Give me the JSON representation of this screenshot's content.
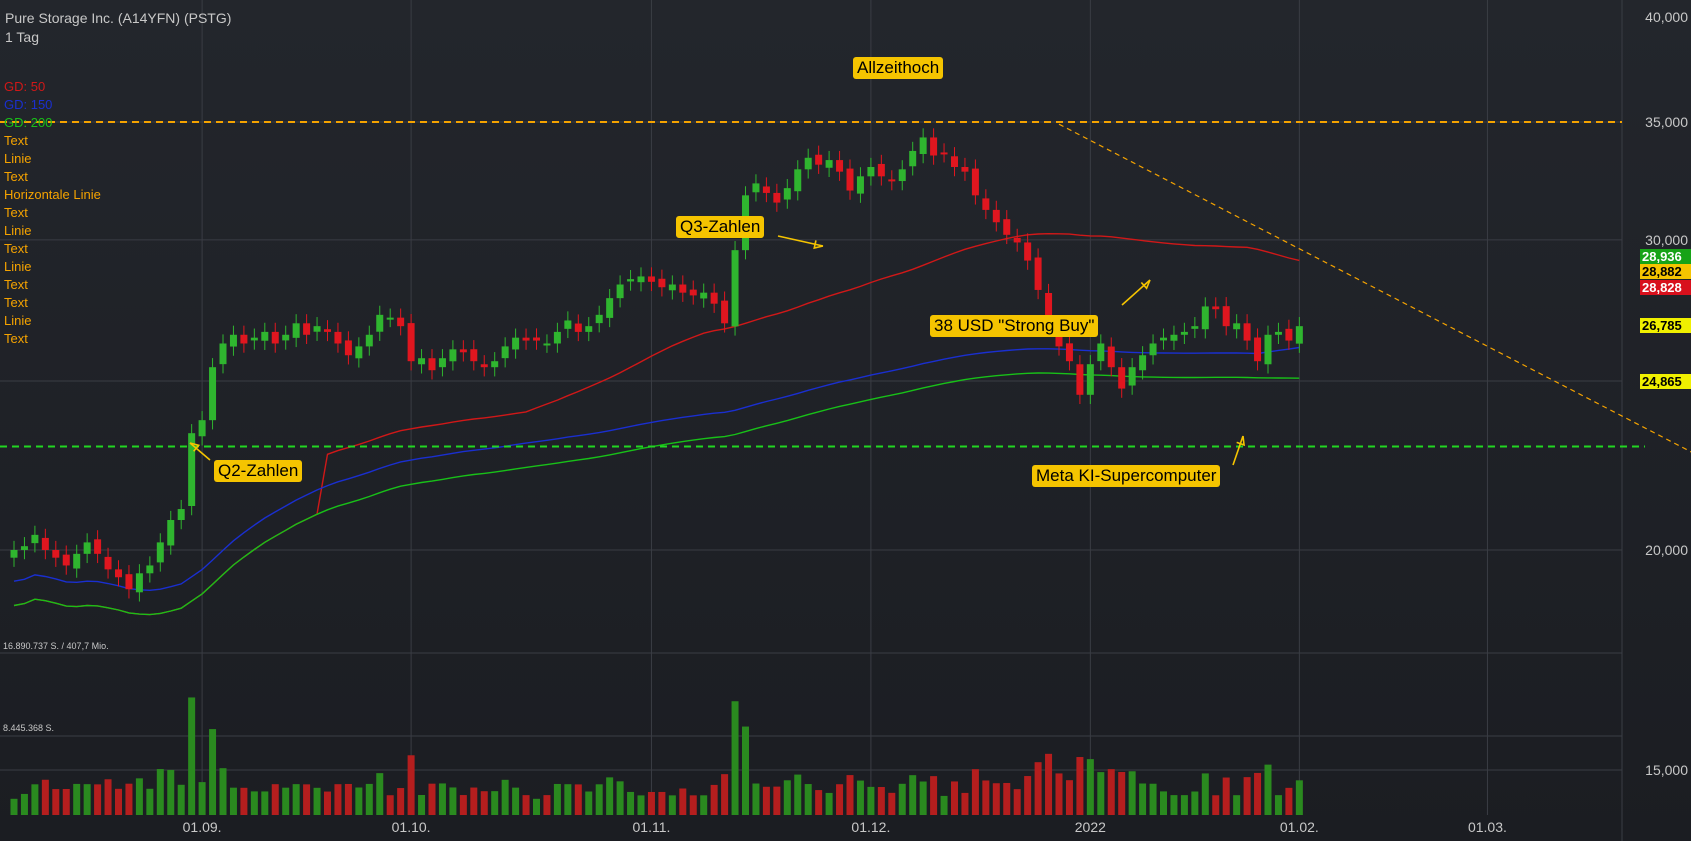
{
  "header": {
    "title": "Pure Storage Inc. (A14YFN) (PSTG)",
    "interval": "1 Tag"
  },
  "legend": [
    {
      "label": "GD: 50",
      "color": "#d01818"
    },
    {
      "label": "GD: 150",
      "color": "#1a2fd0"
    },
    {
      "label": "GD: 200",
      "color": "#18c018"
    },
    {
      "label": "Text",
      "color": "#f5a300"
    },
    {
      "label": "Linie",
      "color": "#f5a300"
    },
    {
      "label": "Text",
      "color": "#f5a300"
    },
    {
      "label": "Horizontale Linie",
      "color": "#f5a300"
    },
    {
      "label": "Text",
      "color": "#f5a300"
    },
    {
      "label": "Linie",
      "color": "#f5a300"
    },
    {
      "label": "Text",
      "color": "#f5a300"
    },
    {
      "label": "Linie",
      "color": "#f5a300"
    },
    {
      "label": "Text",
      "color": "#f5a300"
    },
    {
      "label": "Text",
      "color": "#f5a300"
    },
    {
      "label": "Linie",
      "color": "#f5a300"
    },
    {
      "label": "Text",
      "color": "#f5a300"
    }
  ],
  "annotations": {
    "ath": "Allzeithoch",
    "q3": "Q3-Zahlen",
    "q2": "Q2-Zahlen",
    "buy": "38 USD \"Strong Buy\"",
    "meta": "Meta KI-Supercomputer"
  },
  "price_tags": [
    {
      "value": "28,936",
      "bg": "#17a317",
      "fg": "#ffffff"
    },
    {
      "value": "28,882",
      "bg": "#f5c400",
      "fg": "#000000"
    },
    {
      "value": "28,828",
      "bg": "#d8101c",
      "fg": "#ffffff"
    },
    {
      "value": "26,785",
      "bg": "#f0f000",
      "fg": "#000000"
    },
    {
      "value": "24,865",
      "bg": "#f0f000",
      "fg": "#000000"
    }
  ],
  "volume_labels": {
    "top": "16.890.737 S. / 407,7 Mio.",
    "mid": "8.445.368 S."
  },
  "colors": {
    "up": "#2fb52f",
    "down": "#e0161f",
    "volUp": "#2a8a1f",
    "volDown": "#b51e1e",
    "gd50": "#d01818",
    "gd150": "#1a2fd0",
    "gd200": "#18c018",
    "hline": "#f5a300",
    "support": "#22d622"
  },
  "chart_data": {
    "type": "candlestick",
    "ylim": [
      17,
      40
    ],
    "y_scale": "log",
    "yticks": [
      {
        "v": 40,
        "label": "40,000"
      },
      {
        "v": 35,
        "label": "35,000"
      },
      {
        "v": 30,
        "label": "30,000"
      },
      {
        "v": 20,
        "label": "20,000"
      },
      {
        "v": 15,
        "label": "15,000"
      }
    ],
    "xticks": [
      "01.09.",
      "01.10.",
      "01.11.",
      "01.12.",
      "2022",
      "01.02.",
      "01.03."
    ],
    "xtick_index": [
      18,
      38,
      61,
      82,
      103,
      123,
      141
    ],
    "hlines": [
      {
        "v": 35.0,
        "kind": "resistance"
      },
      {
        "v": 22.9,
        "kind": "support"
      }
    ],
    "trendline": {
      "from": [
        100,
        34.9
      ],
      "to": [
        158,
        22.6
      ]
    },
    "volume_max": 16890737,
    "closes": [
      20.0,
      20.1,
      20.4,
      20.0,
      19.8,
      19.6,
      19.9,
      20.2,
      19.9,
      19.5,
      19.3,
      19.0,
      19.4,
      19.6,
      20.2,
      20.8,
      21.1,
      23.3,
      23.7,
      25.4,
      26.2,
      26.5,
      26.2,
      26.4,
      26.6,
      26.2,
      26.5,
      26.9,
      26.5,
      26.8,
      26.6,
      26.2,
      25.8,
      26.1,
      26.5,
      27.2,
      27.1,
      26.8,
      25.6,
      25.7,
      25.3,
      25.7,
      26.0,
      25.9,
      25.6,
      25.4,
      25.6,
      26.1,
      26.4,
      26.3,
      26.3,
      26.2,
      26.6,
      27.0,
      26.6,
      26.8,
      27.2,
      27.8,
      28.3,
      28.5,
      28.6,
      28.4,
      28.2,
      28.3,
      28.0,
      27.9,
      28.0,
      27.6,
      26.9,
      29.6,
      31.8,
      32.3,
      31.9,
      31.5,
      32.1,
      32.9,
      33.4,
      33.1,
      33.3,
      32.8,
      32.0,
      32.6,
      33.0,
      32.6,
      32.4,
      32.9,
      33.7,
      34.3,
      33.5,
      33.6,
      33.0,
      32.8,
      31.8,
      31.2,
      30.7,
      30.2,
      29.9,
      29.2,
      28.1,
      26.8,
      26.1,
      25.6,
      24.5,
      25.5,
      26.2,
      25.4,
      24.7,
      25.4,
      25.8,
      26.2,
      26.4,
      26.5,
      26.6,
      26.8,
      27.5,
      27.4,
      26.8,
      26.9,
      26.3,
      25.6,
      26.5,
      26.6,
      26.3,
      26.8
    ]
  }
}
